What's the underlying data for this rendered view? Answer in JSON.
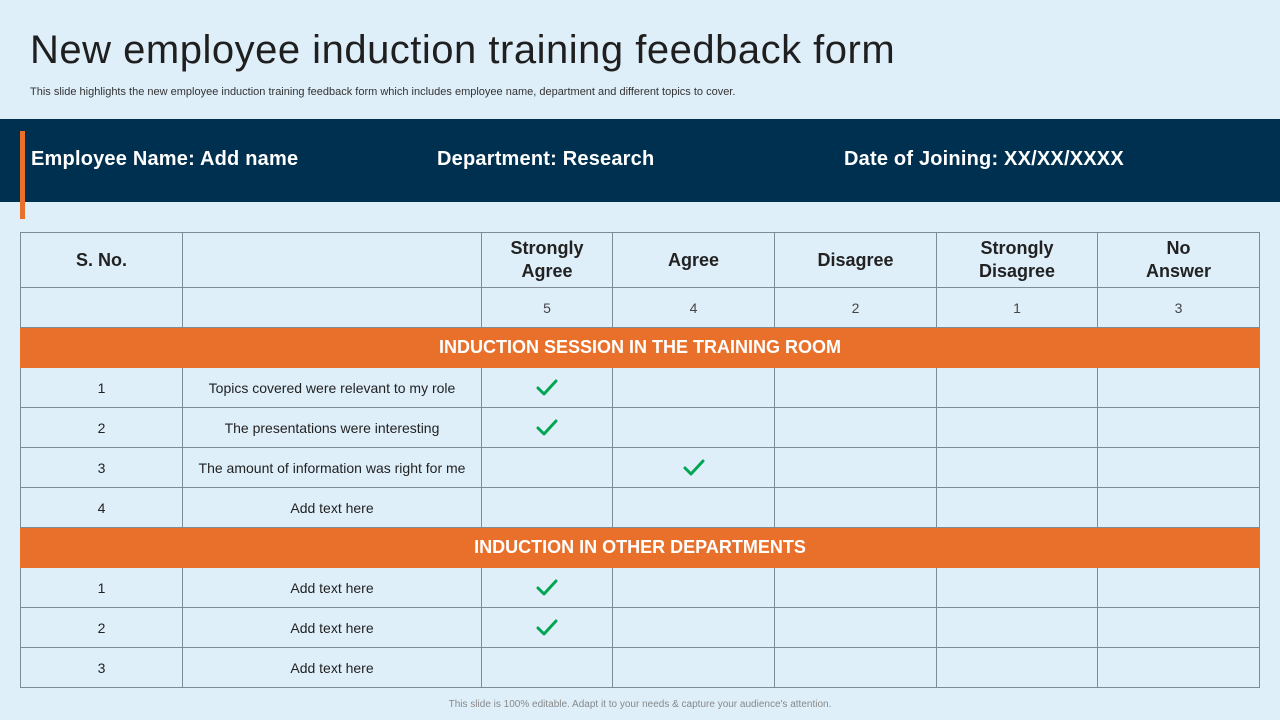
{
  "title": "New employee induction training feedback form",
  "subtitle": "This slide highlights the new employee induction training feedback form which includes employee name, department and different topics to cover.",
  "banner": {
    "employee_name": "Employee  Name: Add name",
    "department": "Department: Research",
    "date_of_joining": "Date of Joining: XX/XX/XXXX"
  },
  "table": {
    "headers": {
      "sno": "S. No.",
      "topic": "",
      "strongly_agree": [
        "Strongly",
        "Agree"
      ],
      "agree": "Agree",
      "disagree": "Disagree",
      "strongly_disagree": [
        "Strongly",
        "Disagree"
      ],
      "no_answer": [
        "No",
        "Answer"
      ]
    },
    "scores": [
      "5",
      "4",
      "2",
      "1",
      "3"
    ],
    "sections": [
      {
        "title": "INDUCTION SESSION IN THE TRAINING ROOM",
        "rows": [
          {
            "no": "1",
            "text": "Topics covered were relevant to my role",
            "checked": "strongly_agree"
          },
          {
            "no": "2",
            "text": "The presentations were interesting",
            "checked": "strongly_agree"
          },
          {
            "no": "3",
            "text": "The amount of information was right for me",
            "checked": "agree"
          },
          {
            "no": "4",
            "text": "Add text here",
            "checked": ""
          }
        ]
      },
      {
        "title": "INDUCTION IN OTHER DEPARTMENTS",
        "rows": [
          {
            "no": "1",
            "text": "Add text here",
            "checked": "strongly_agree"
          },
          {
            "no": "2",
            "text": "Add text here",
            "checked": "strongly_agree"
          },
          {
            "no": "3",
            "text": "Add text here",
            "checked": ""
          }
        ]
      }
    ]
  },
  "footer": "This slide is 100% editable.  Adapt it to your needs & capture your audience's attention.",
  "colors": {
    "background": "#dfeffa",
    "banner": "#00304f",
    "accent": "#e8702a",
    "check": "#00a651"
  },
  "icons": {
    "check": "check-icon"
  }
}
